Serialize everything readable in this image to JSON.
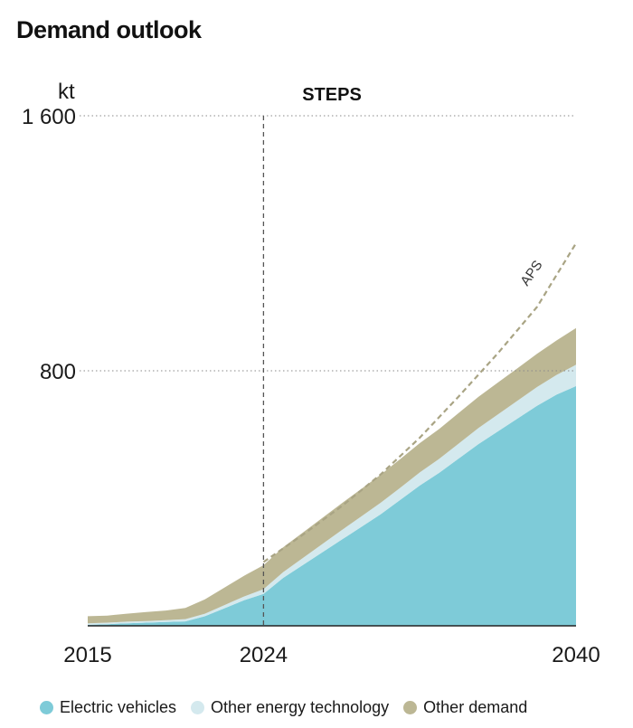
{
  "title": "Demand outlook",
  "colors": {
    "electric_vehicles": "#7ecbd8",
    "other_energy_technology": "#d4e9ee",
    "other_demand": "#bcb794",
    "aps_line": "#a9a484",
    "grid": "#8a8a8a",
    "marker_line": "#555555"
  },
  "chart_data": {
    "type": "area",
    "title": "STEPS",
    "unit": "kt",
    "ylim": [
      0,
      1600
    ],
    "xlim": [
      2015,
      2040
    ],
    "yticks": [
      800,
      1600
    ],
    "ytick_labels": [
      "800",
      "1 600"
    ],
    "xtick_labels": [
      "2015",
      "2024",
      "2040"
    ],
    "xticks": [
      2015,
      2024,
      2040
    ],
    "grid": "horizontal dotted at ticks",
    "marker_year": 2024,
    "x": [
      2015,
      2016,
      2017,
      2018,
      2019,
      2020,
      2021,
      2022,
      2023,
      2024,
      2025,
      2026,
      2027,
      2028,
      2029,
      2030,
      2031,
      2032,
      2033,
      2034,
      2035,
      2036,
      2037,
      2038,
      2039,
      2040
    ],
    "series": [
      {
        "name": "Electric vehicles",
        "values": [
          3,
          5,
          8,
          10,
          12,
          14,
          30,
          55,
          80,
          100,
          150,
          190,
          230,
          270,
          310,
          350,
          395,
          440,
          480,
          525,
          570,
          610,
          650,
          690,
          725,
          752
        ]
      },
      {
        "name": "Other energy technology",
        "values": [
          5,
          5,
          5,
          5,
          6,
          7,
          8,
          10,
          12,
          15,
          18,
          22,
          26,
          30,
          33,
          36,
          38,
          41,
          44,
          47,
          50,
          53,
          56,
          59,
          62,
          67
        ]
      },
      {
        "name": "Other demand",
        "values": [
          22,
          22,
          25,
          28,
          30,
          35,
          45,
          55,
          65,
          75,
          78,
          80,
          82,
          84,
          86,
          88,
          90,
          92,
          94,
          96,
          98,
          100,
          102,
          104,
          108,
          115
        ]
      }
    ],
    "aps_line": {
      "label": "APS",
      "x": [
        2024,
        2026,
        2028,
        2030,
        2032,
        2034,
        2036,
        2038,
        2040
      ],
      "values": [
        200,
        285,
        375,
        475,
        590,
        720,
        855,
        1000,
        1200
      ]
    },
    "legend": {
      "placement": "bottom",
      "entries": [
        "Electric vehicles",
        "Other energy technology",
        "Other demand"
      ]
    }
  }
}
